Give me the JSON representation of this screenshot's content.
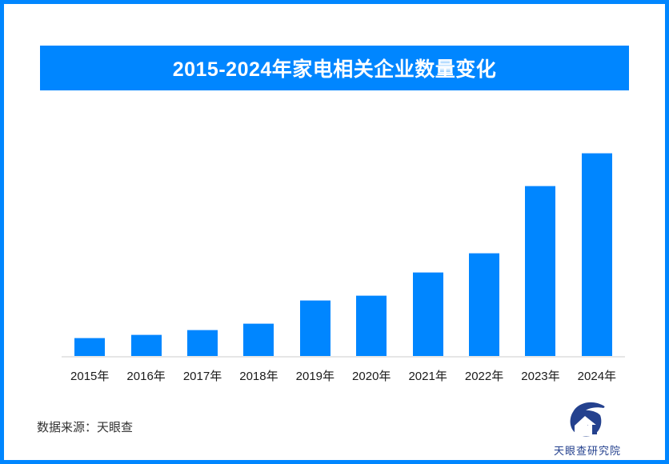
{
  "page": {
    "background": "#FFFFFF",
    "frame_border_color": "#0086FF"
  },
  "title_banner": {
    "text": "2015-2024年家电相关企业数量变化",
    "bg_color": "#0086FF",
    "text_color": "#FFFFFF"
  },
  "chart_data": {
    "type": "bar",
    "title": "2015-2024年家电相关企业数量变化",
    "categories": [
      "2015年",
      "2016年",
      "2017年",
      "2018年",
      "2019年",
      "2020年",
      "2021年",
      "2022年",
      "2023年",
      "2024年"
    ],
    "values": [
      22,
      26,
      32,
      40,
      69,
      75,
      104,
      128,
      212,
      253
    ],
    "values_unit": "relative height units (no numeric value labels or y-axis shown in chart)",
    "xlabel": "",
    "ylabel": "",
    "ylim": [
      0,
      280
    ],
    "grid": false,
    "legend": false,
    "bar_color": "#0086FF",
    "baseline_color": "#E6E6E6",
    "tick_label_color": "#1A1A1A"
  },
  "footer": {
    "source_text": "数据来源：天眼查",
    "logo": {
      "text": "天眼查研究院",
      "color": "#24418E"
    }
  }
}
